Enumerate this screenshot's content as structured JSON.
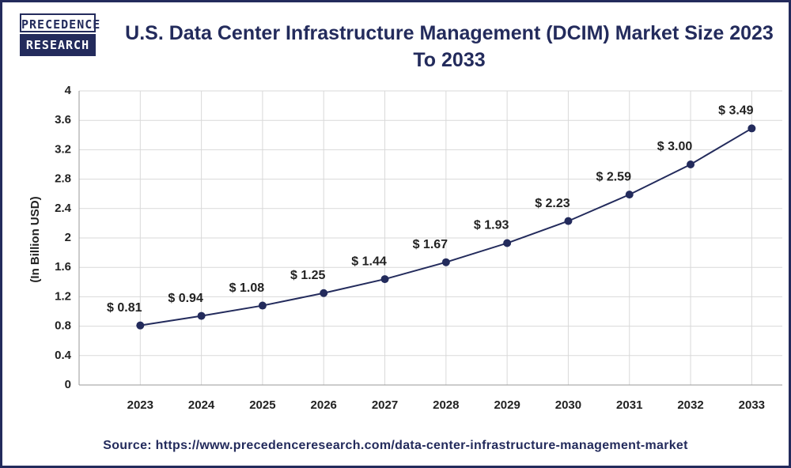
{
  "logo": {
    "line1": "PRECEDENCE",
    "line2": "RESEARCH"
  },
  "chart_data": {
    "type": "line",
    "title": "U.S. Data Center Infrastructure Management (DCIM) Market Size 2023 To 2033",
    "y_label": "(In Billion USD)",
    "categories": [
      "2023",
      "2024",
      "2025",
      "2026",
      "2027",
      "2028",
      "2029",
      "2030",
      "2031",
      "2032",
      "2033"
    ],
    "values": [
      0.81,
      0.94,
      1.08,
      1.25,
      1.44,
      1.67,
      1.93,
      2.23,
      2.59,
      3.0,
      3.49
    ],
    "value_labels": [
      "$ 0.81",
      "$ 0.94",
      "$ 1.08",
      "$ 1.25",
      "$ 1.44",
      "$ 1.67",
      "$ 1.93",
      "$ 2.23",
      "$ 2.59",
      "$ 3.00",
      "$ 3.49"
    ],
    "color": "#232b5c",
    "ylim": [
      0,
      4
    ],
    "yticks": [
      0,
      0.4,
      0.8,
      1.2,
      1.6,
      2,
      2.4,
      2.8,
      3.2,
      3.6,
      4
    ],
    "grid": true,
    "source": "Source: https://www.precedenceresearch.com/data-center-infrastructure-management-market"
  }
}
